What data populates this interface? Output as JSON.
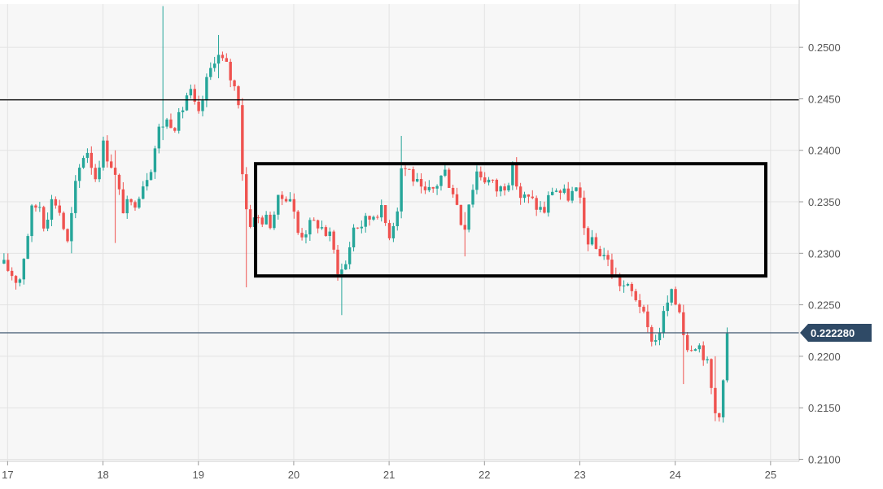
{
  "colors": {
    "up": "#26a69a",
    "down": "#ef5350",
    "plot_background": "#f7f7f7",
    "grid": "#e3e3e3",
    "resistance_line": "#000000",
    "current_price_line": "#3e5670",
    "price_tag_bg": "#2f4a66",
    "range_box": "#000000"
  },
  "chart_data": {
    "type": "candlestick",
    "title": "",
    "xlabel": "",
    "ylabel": "",
    "x_ticks": [
      "17",
      "18",
      "19",
      "20",
      "21",
      "22",
      "23",
      "24",
      "25"
    ],
    "y_ticks": [
      "0.2100",
      "0.2150",
      "0.2200",
      "0.2250",
      "0.2300",
      "0.2350",
      "0.2400",
      "0.2450",
      "0.2500"
    ],
    "xlim": [
      16.92,
      25.3
    ],
    "ylim": [
      0.2098,
      0.2542
    ],
    "grid": true,
    "horizontal_lines": [
      {
        "value": 0.2449,
        "role": "resistance"
      },
      {
        "value": 0.22228,
        "role": "current-price"
      }
    ],
    "current_price": "0.222280",
    "range_box": {
      "x": [
        19.6,
        24.95
      ],
      "y": [
        0.2278,
        0.2387
      ]
    },
    "candles_sampling": "approximate, approx. one candle every 1/24 day",
    "anchors": [
      [
        16.92,
        0.229
      ],
      [
        17.0,
        0.2285
      ],
      [
        17.12,
        0.2272
      ],
      [
        17.25,
        0.234
      ],
      [
        17.33,
        0.235
      ],
      [
        17.38,
        0.233
      ],
      [
        17.48,
        0.2355
      ],
      [
        17.55,
        0.234
      ],
      [
        17.63,
        0.2308
      ],
      [
        17.72,
        0.237
      ],
      [
        17.82,
        0.2405
      ],
      [
        17.92,
        0.2375
      ],
      [
        18.0,
        0.2405
      ],
      [
        18.1,
        0.2385
      ],
      [
        18.2,
        0.2345
      ],
      [
        18.3,
        0.2345
      ],
      [
        18.4,
        0.2365
      ],
      [
        18.5,
        0.2385
      ],
      [
        18.6,
        0.2425
      ],
      [
        18.7,
        0.243
      ],
      [
        18.78,
        0.2425
      ],
      [
        18.9,
        0.246
      ],
      [
        19.0,
        0.243
      ],
      [
        19.07,
        0.246
      ],
      [
        19.18,
        0.2495
      ],
      [
        19.3,
        0.248
      ],
      [
        19.42,
        0.245
      ],
      [
        19.48,
        0.235
      ],
      [
        19.55,
        0.233
      ],
      [
        19.65,
        0.2335
      ],
      [
        19.75,
        0.233
      ],
      [
        19.85,
        0.2352
      ],
      [
        19.95,
        0.236
      ],
      [
        20.05,
        0.2318
      ],
      [
        20.15,
        0.2325
      ],
      [
        20.25,
        0.233
      ],
      [
        20.38,
        0.2315
      ],
      [
        20.48,
        0.228
      ],
      [
        20.55,
        0.229
      ],
      [
        20.62,
        0.2325
      ],
      [
        20.75,
        0.233
      ],
      [
        20.9,
        0.2345
      ],
      [
        21.0,
        0.232
      ],
      [
        21.08,
        0.234
      ],
      [
        21.13,
        0.2385
      ],
      [
        21.22,
        0.238
      ],
      [
        21.35,
        0.2355
      ],
      [
        21.45,
        0.236
      ],
      [
        21.58,
        0.238
      ],
      [
        21.68,
        0.236
      ],
      [
        21.78,
        0.232
      ],
      [
        21.82,
        0.2345
      ],
      [
        21.92,
        0.238
      ],
      [
        22.05,
        0.237
      ],
      [
        22.15,
        0.236
      ],
      [
        22.3,
        0.238
      ],
      [
        22.38,
        0.2355
      ],
      [
        22.5,
        0.235
      ],
      [
        22.62,
        0.234
      ],
      [
        22.72,
        0.2365
      ],
      [
        22.85,
        0.2355
      ],
      [
        22.98,
        0.236
      ],
      [
        23.05,
        0.232
      ],
      [
        23.15,
        0.2305
      ],
      [
        23.25,
        0.23
      ],
      [
        23.38,
        0.2275
      ],
      [
        23.5,
        0.2265
      ],
      [
        23.62,
        0.2255
      ],
      [
        23.7,
        0.2225
      ],
      [
        23.8,
        0.2215
      ],
      [
        23.88,
        0.224
      ],
      [
        23.95,
        0.226
      ],
      [
        24.05,
        0.2245
      ],
      [
        24.12,
        0.221
      ],
      [
        24.22,
        0.2215
      ],
      [
        24.32,
        0.22
      ],
      [
        24.42,
        0.2145
      ],
      [
        24.48,
        0.215
      ],
      [
        24.55,
        0.2225
      ],
      [
        24.58,
        0.2225
      ]
    ],
    "wicks": [
      {
        "x": 18.63,
        "high": 0.254,
        "low": 0.241
      },
      {
        "x": 19.2,
        "high": 0.2512,
        "low": 0.247
      },
      {
        "x": 19.5,
        "high": 0.2348,
        "low": 0.2267
      },
      {
        "x": 20.52,
        "high": 0.229,
        "low": 0.224
      },
      {
        "x": 21.12,
        "high": 0.2414,
        "low": 0.237
      },
      {
        "x": 21.78,
        "high": 0.234,
        "low": 0.2297
      },
      {
        "x": 24.08,
        "high": 0.225,
        "low": 0.2173
      },
      {
        "x": 24.42,
        "high": 0.22,
        "low": 0.2137
      },
      {
        "x": 17.65,
        "high": 0.2345,
        "low": 0.23
      },
      {
        "x": 18.12,
        "high": 0.24,
        "low": 0.231
      }
    ]
  }
}
